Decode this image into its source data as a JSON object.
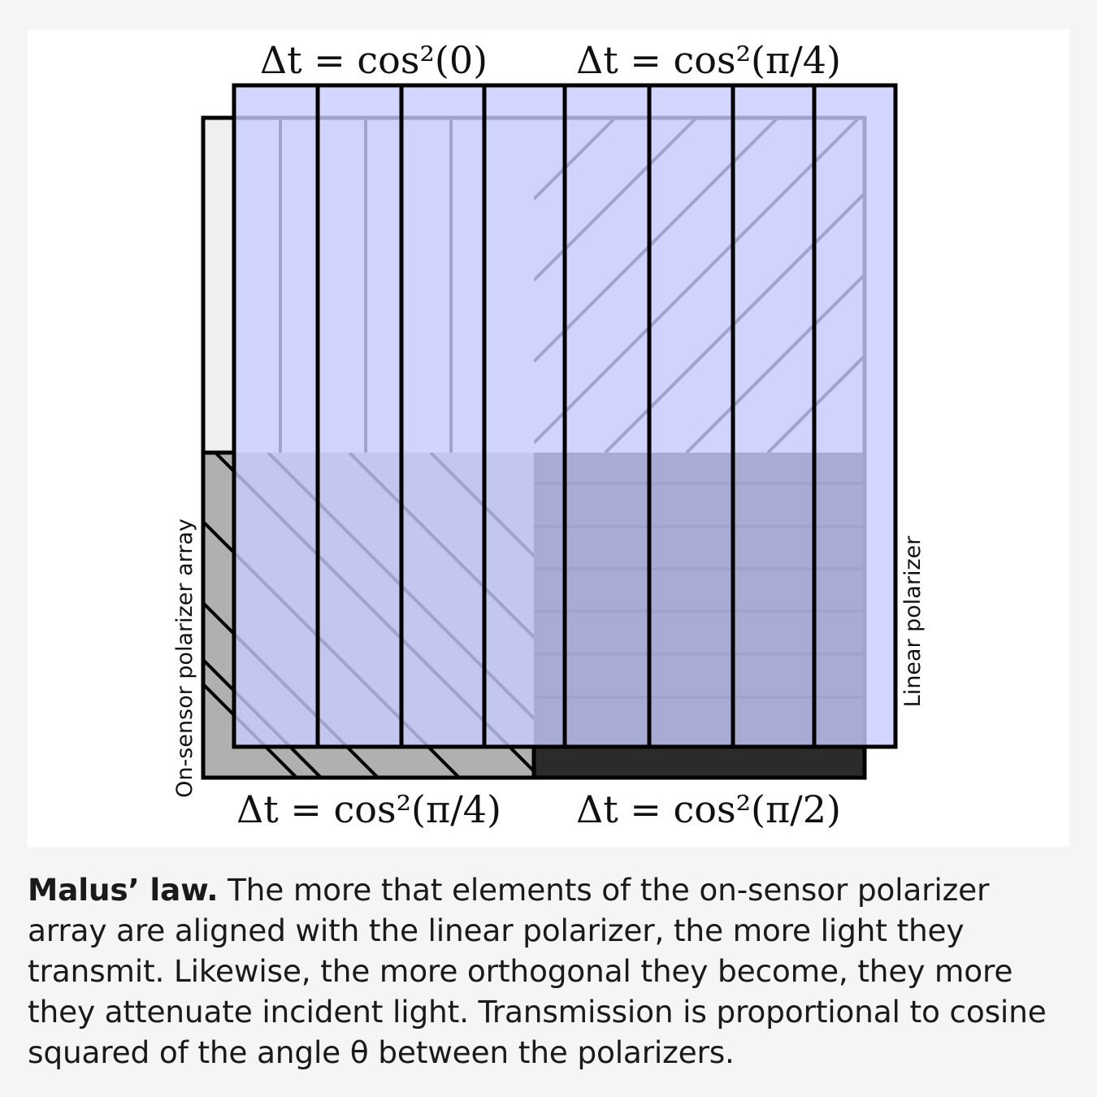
{
  "figure": {
    "labels": {
      "top_left": "Δt = cos²(0)",
      "top_right": "Δt = cos²(π/4)",
      "bottom_left": "Δt = cos²(π/4)",
      "bottom_right": "Δt = cos²(π/2)",
      "left_side": "On-sensor polarizer array",
      "right_side": "Linear polarizer"
    },
    "colors": {
      "polarizer_blue": "#c8ccff",
      "stroke": "#000000",
      "cell_white": "#efefef",
      "cell_light_gray": "#b0b0b0",
      "cell_dark": "#2b2b2b"
    }
  },
  "caption": {
    "title": "Malus’ law.",
    "body": " The more that elements of the on-sensor polarizer array are aligned with the linear polarizer, the more light they transmit. Likewise, the more orthogonal they become, they more they attenuate incident light. Transmission is proportional to cosine squared of the angle θ between the polarizers."
  }
}
